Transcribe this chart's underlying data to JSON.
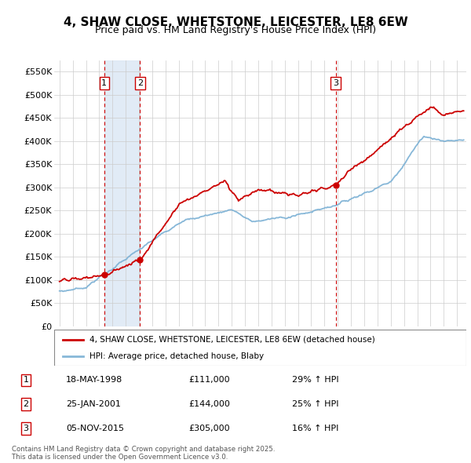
{
  "title": "4, SHAW CLOSE, WHETSTONE, LEICESTER, LE8 6EW",
  "subtitle": "Price paid vs. HM Land Registry's House Price Index (HPI)",
  "ylabel_ticks": [
    "£0",
    "£50K",
    "£100K",
    "£150K",
    "£200K",
    "£250K",
    "£300K",
    "£350K",
    "£400K",
    "£450K",
    "£500K",
    "£550K"
  ],
  "ytick_values": [
    0,
    50000,
    100000,
    150000,
    200000,
    250000,
    300000,
    350000,
    400000,
    450000,
    500000,
    550000
  ],
  "ylim": [
    0,
    575000
  ],
  "xlim_start": 1994.6,
  "xlim_end": 2025.7,
  "transactions": [
    {
      "label": "1",
      "date": "18-MAY-1998",
      "price": 111000,
      "year": 1998.38,
      "pct": "29%",
      "dir": "↑"
    },
    {
      "label": "2",
      "date": "25-JAN-2001",
      "price": 144000,
      "year": 2001.07,
      "pct": "25%",
      "dir": "↑"
    },
    {
      "label": "3",
      "date": "05-NOV-2015",
      "price": 305000,
      "year": 2015.84,
      "pct": "16%",
      "dir": "↑"
    }
  ],
  "legend_line1": "4, SHAW CLOSE, WHETSTONE, LEICESTER, LE8 6EW (detached house)",
  "legend_line2": "HPI: Average price, detached house, Blaby",
  "footnote": "Contains HM Land Registry data © Crown copyright and database right 2025.\nThis data is licensed under the Open Government Licence v3.0.",
  "red_color": "#cc0000",
  "blue_color": "#7ab0d4",
  "bg_shade": "#dce8f5",
  "grid_color": "#cccccc"
}
